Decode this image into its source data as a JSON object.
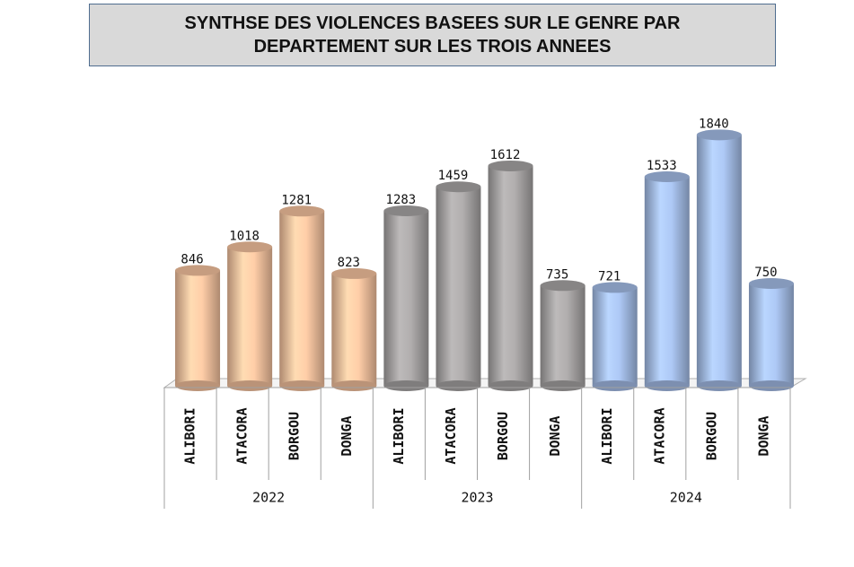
{
  "chart_data": {
    "type": "bar",
    "title": "SYNTHSE DES VIOLENCES BASEES SUR LE GENRE PAR DEPARTEMENT SUR LES TROIS ANNEES",
    "ylim": [
      0,
      2000
    ],
    "series": [
      {
        "name": "2022",
        "color": "#f8c4a0",
        "categories": [
          "ALIBORI",
          "ATACORA",
          "BORGOU",
          "DONGA"
        ],
        "values": [
          846,
          1018,
          1281,
          823
        ]
      },
      {
        "name": "2023",
        "color": "#a9a6a6",
        "categories": [
          "ALIBORI",
          "ATACORA",
          "BORGOU",
          "DONGA"
        ],
        "values": [
          1283,
          1459,
          1612,
          735
        ]
      },
      {
        "name": "2024",
        "color": "#a6bfea",
        "categories": [
          "ALIBORI",
          "ATACORA",
          "BORGOU",
          "DONGA"
        ],
        "values": [
          721,
          1533,
          1840,
          750
        ]
      }
    ]
  }
}
